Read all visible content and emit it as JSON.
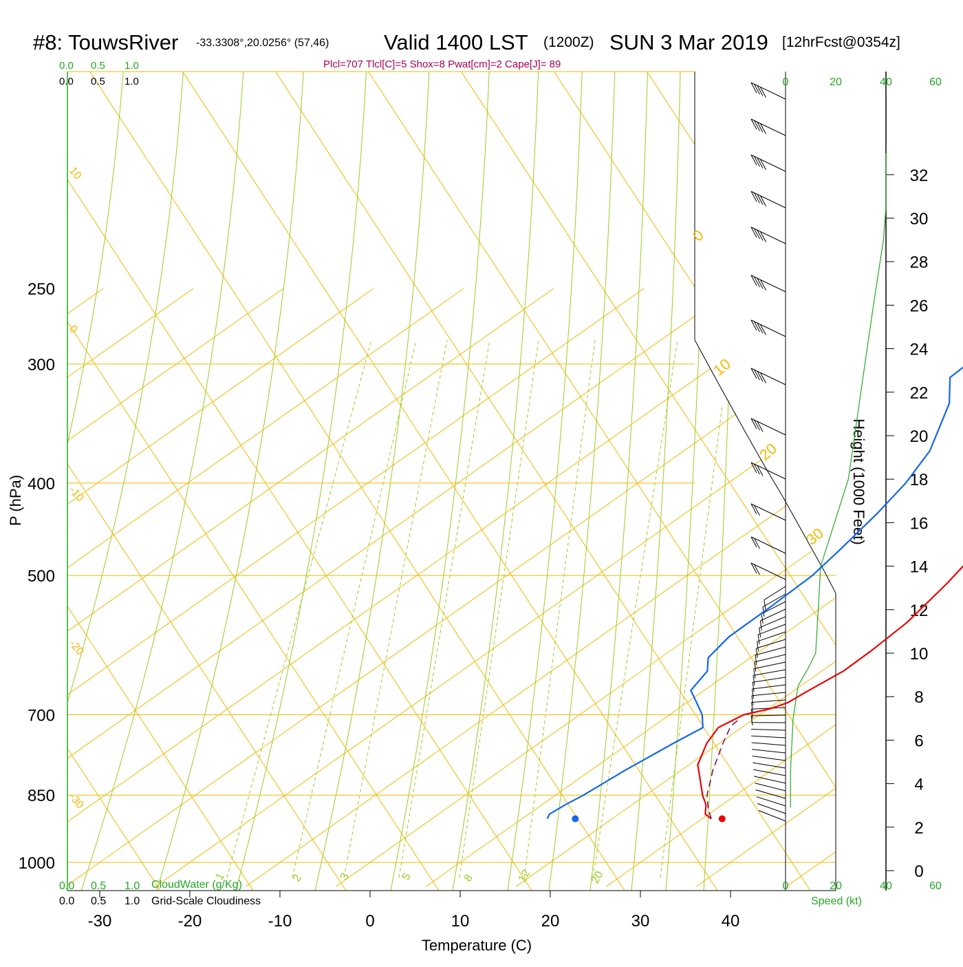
{
  "header": {
    "station": "#8: TouwsRiver",
    "coords": "-33.3308°,20.0256° (57,46)",
    "valid": "Valid 1400 LST",
    "utc": "(1200Z)",
    "date": "SUN 3 Mar 2019",
    "fcst": "[12hrFcst@0354z]",
    "indices": "Plcl=707 Tlcl[C]=5 Shox=8 Pwat[cm]=2 Cape[J]= 89"
  },
  "colors": {
    "temperature": "#ee0000",
    "dewpoint": "#1166ee",
    "parcel": "#770055",
    "isotherm": "#f5b800",
    "dry_adiabat": "#f5b800",
    "moist_adiabat": "#99cc22",
    "mixing_ratio": "#99cc22",
    "green_label": "#22aa22",
    "indices": "#aa0055"
  },
  "scales": {
    "top_green": [
      "0.0",
      "0.5",
      "1.0"
    ],
    "top_black": [
      "0.0",
      "0.5",
      "1.0"
    ],
    "bottom_green": [
      "0.0",
      "0.5",
      "1.0"
    ],
    "bottom_black": [
      "0.0",
      "0.5",
      "1.0"
    ],
    "cloudwater_label": "CloudWater (g/Kg)",
    "cloudiness_label": "Grid-Scale Cloudiness",
    "speed_top": [
      "0",
      "20",
      "40",
      "60"
    ],
    "speed_bottom": [
      "0",
      "20",
      "40",
      "60"
    ],
    "speed_label": "Speed (kt)"
  },
  "dry_adiabat_labels": [
    "10",
    "0",
    "-10",
    "-20",
    "-30"
  ],
  "moist_adiabat_labels": [
    "0",
    "10",
    "20",
    "30"
  ],
  "mixing_ratio_labels": [
    "1",
    "2",
    "3",
    "5",
    "8",
    "12",
    "20"
  ],
  "chart_data": {
    "type": "line",
    "xlabel": "Temperature (C)",
    "ylabel": "P (hPa)",
    "y2label": "Height (1000 Feet)",
    "xlim": [
      -34,
      36
    ],
    "ylim": [
      1050,
      250
    ],
    "x_ticks": [
      "-30",
      "-20",
      "-10",
      "0",
      "10",
      "20",
      "30",
      "40"
    ],
    "y_ticks": [
      "250",
      "300",
      "400",
      "500",
      "700",
      "850",
      "1000"
    ],
    "height_ticks": [
      "0",
      "2",
      "4",
      "6",
      "8",
      "10",
      "12",
      "14",
      "16",
      "18",
      "20",
      "22",
      "24",
      "26",
      "28",
      "30",
      "32"
    ],
    "series": [
      {
        "x": [
          31.0,
          29.6,
          28.2,
          26.3,
          23.7,
          21.0,
          18.6,
          17.4,
          18.2,
          20.2,
          21.2,
          21.6,
          22.4,
          22.3,
          21.8,
          20.1,
          17.8,
          15.3,
          12.8,
          11.0,
          9.7,
          7.8,
          5.7
        ],
        "y": [
          900,
          890,
          870,
          850,
          820,
          790,
          750,
          722,
          700,
          690,
          680,
          660,
          630,
          600,
          560,
          510,
          460,
          410,
          360,
          330,
          310,
          290,
          270
        ]
      },
      {
        "x": [
          12.8,
          12.3,
          12.6,
          13.1,
          13.8,
          14.9,
          15.7,
          13.6,
          11.1,
          8.5,
          7.3,
          5.3,
          4.3,
          4.2,
          3.9,
          2.9,
          1.3,
          -0.3,
          -2.7,
          -8.0,
          -12.0,
          -12.2,
          -11.8,
          -10.6
        ],
        "y": [
          900,
          890,
          870,
          850,
          800,
          750,
          722,
          700,
          680,
          660,
          630,
          610,
          580,
          540,
          500,
          470,
          430,
          400,
          370,
          330,
          310,
          300,
          280,
          266
        ]
      },
      {
        "x": [
          31.0,
          29.2,
          26.8,
          23.5,
          20.4,
          18.6,
          18.4
        ],
        "y": [
          900,
          880,
          850,
          800,
          750,
          720,
          707
        ]
      }
    ],
    "points": [
      {
        "x": 32.2,
        "y": 900
      },
      {
        "x": 15.9,
        "y": 900
      }
    ],
    "height_profile": [
      {
        "wind_kt": 2,
        "height_kft": 2.9
      },
      {
        "wind_kt": 2,
        "height_kft": 4.6
      },
      {
        "wind_kt": 3,
        "height_kft": 7.0
      },
      {
        "wind_kt": 5,
        "height_kft": 8.5
      },
      {
        "wind_kt": 9,
        "height_kft": 9.3
      },
      {
        "wind_kt": 12,
        "height_kft": 10.0
      },
      {
        "wind_kt": 13,
        "height_kft": 12.0
      },
      {
        "wind_kt": 14,
        "height_kft": 14.0
      },
      {
        "wind_kt": 25,
        "height_kft": 18.0
      },
      {
        "wind_kt": 30,
        "height_kft": 22.0
      },
      {
        "wind_kt": 35,
        "height_kft": 26.0
      },
      {
        "wind_kt": 39,
        "height_kft": 29.0
      },
      {
        "wind_kt": 40,
        "height_kft": 30.5
      },
      {
        "wind_kt": 40,
        "height_kft": 33.0
      }
    ]
  }
}
